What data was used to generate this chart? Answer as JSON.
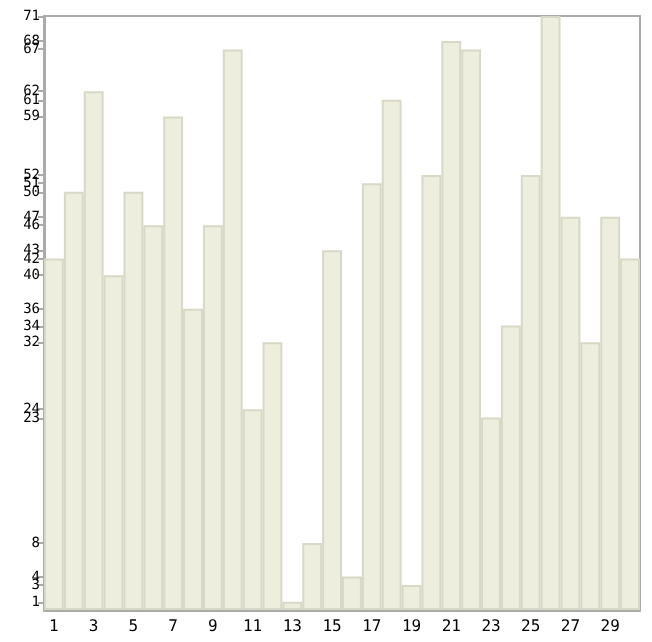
{
  "chart_data": {
    "type": "bar",
    "categories": [
      "1",
      null,
      "3",
      null,
      "5",
      null,
      "7",
      null,
      "9",
      null,
      "11",
      null,
      "13",
      null,
      "15",
      null,
      "17",
      null,
      "19",
      null,
      "21",
      null,
      "23",
      null,
      "25",
      null,
      "27",
      null,
      "29",
      null
    ],
    "values": [
      42,
      50,
      62,
      40,
      50,
      46,
      59,
      36,
      46,
      67,
      24,
      32,
      1,
      8,
      43,
      4,
      51,
      61,
      3,
      52,
      68,
      67,
      23,
      34,
      52,
      71,
      47,
      32,
      47,
      42
    ],
    "color": "#eeeedf",
    "ylim": [
      0,
      71
    ],
    "yticks": [
      1,
      3,
      4,
      8,
      23,
      24,
      32,
      34,
      36,
      40,
      42,
      43,
      46,
      47,
      50,
      51,
      52,
      59,
      61,
      62,
      67,
      68,
      71
    ],
    "grid": false
  }
}
